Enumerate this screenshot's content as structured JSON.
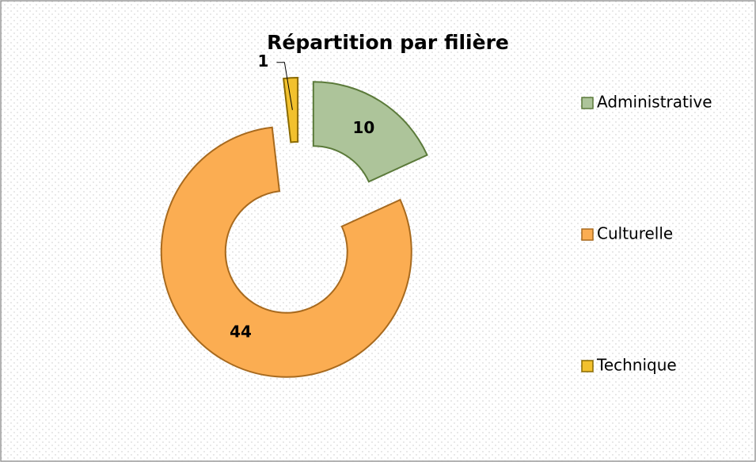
{
  "chart_data": {
    "type": "doughnut",
    "title": "Répartition par filière",
    "categories": [
      "Administrative",
      "Culturelle",
      "Technique"
    ],
    "values": [
      10,
      44,
      1
    ],
    "colors": [
      "#adc49a",
      "#fbad52",
      "#f2c12e"
    ],
    "legend": "right"
  }
}
